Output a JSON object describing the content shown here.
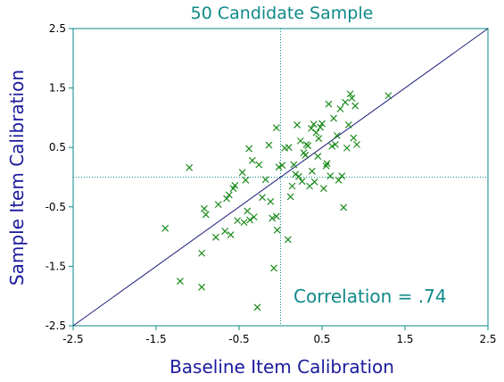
{
  "chart_data": {
    "type": "scatter",
    "title": "50 Candidate Sample",
    "xlabel": "Baseline Item Calibration",
    "ylabel": "Sample Item Calibration",
    "xlim": [
      -2.5,
      2.5
    ],
    "ylim": [
      -2.5,
      2.5
    ],
    "x_ticks": [
      "-2.5",
      "-1.5",
      "-0.5",
      "0.5",
      "1.5",
      "2.5"
    ],
    "y_ticks": [
      "2.5",
      "1.5",
      "0.5",
      "-0.5",
      "-1.5",
      "-2.5"
    ],
    "annotation": "Correlation = .74",
    "colors": {
      "frame": "#0e8a88",
      "marker": "#1a8a1a",
      "identity_line": "#1a1a7a",
      "label": "#1a1a9c"
    },
    "reference_lines": {
      "x": 0,
      "y": 0,
      "style": "dotted"
    },
    "identity_line": true,
    "marker": "x",
    "points": [
      [
        -1.39,
        -0.86
      ],
      [
        -1.21,
        -1.75
      ],
      [
        -1.1,
        0.16
      ],
      [
        -0.95,
        -1.85
      ],
      [
        -0.95,
        -1.28
      ],
      [
        -0.92,
        -0.53
      ],
      [
        -0.9,
        -0.63
      ],
      [
        -0.78,
        -1.01
      ],
      [
        -0.75,
        -0.46
      ],
      [
        -0.67,
        -0.91
      ],
      [
        -0.65,
        -0.36
      ],
      [
        -0.62,
        -0.3
      ],
      [
        -0.6,
        -0.97
      ],
      [
        -0.57,
        -0.19
      ],
      [
        -0.55,
        -0.14
      ],
      [
        -0.52,
        -0.73
      ],
      [
        -0.46,
        0.08
      ],
      [
        -0.44,
        -0.76
      ],
      [
        -0.42,
        -0.05
      ],
      [
        -0.4,
        -0.57
      ],
      [
        -0.38,
        0.48
      ],
      [
        -0.37,
        -0.72
      ],
      [
        -0.34,
        0.28
      ],
      [
        -0.32,
        -0.67
      ],
      [
        -0.28,
        -2.19
      ],
      [
        -0.26,
        0.21
      ],
      [
        -0.22,
        -0.34
      ],
      [
        -0.18,
        -0.04
      ],
      [
        -0.14,
        0.54
      ],
      [
        -0.12,
        -0.41
      ],
      [
        -0.1,
        -0.69
      ],
      [
        -0.08,
        -1.53
      ],
      [
        -0.05,
        0.83
      ],
      [
        -0.05,
        -0.66
      ],
      [
        -0.04,
        -0.89
      ],
      [
        -0.02,
        0.17
      ],
      [
        0.02,
        0.2
      ],
      [
        0.05,
        0.49
      ],
      [
        0.09,
        -1.05
      ],
      [
        0.1,
        0.5
      ],
      [
        0.12,
        -0.33
      ],
      [
        0.14,
        -0.15
      ],
      [
        0.16,
        0.21
      ],
      [
        0.18,
        0.05
      ],
      [
        0.2,
        0.88
      ],
      [
        0.22,
        0.01
      ],
      [
        0.24,
        0.61
      ],
      [
        0.26,
        -0.07
      ],
      [
        0.28,
        0.41
      ],
      [
        0.3,
        0.37
      ],
      [
        0.31,
        0.55
      ],
      [
        0.33,
        0.53
      ],
      [
        0.35,
        -0.15
      ],
      [
        0.37,
        0.82
      ],
      [
        0.38,
        0.1
      ],
      [
        0.4,
        0.89
      ],
      [
        0.41,
        -0.08
      ],
      [
        0.43,
        0.75
      ],
      [
        0.45,
        0.35
      ],
      [
        0.46,
        0.65
      ],
      [
        0.48,
        0.84
      ],
      [
        0.5,
        0.9
      ],
      [
        0.52,
        -0.19
      ],
      [
        0.55,
        0.19
      ],
      [
        0.56,
        0.23
      ],
      [
        0.58,
        1.23
      ],
      [
        0.6,
        0.02
      ],
      [
        0.62,
        0.52
      ],
      [
        0.64,
        0.99
      ],
      [
        0.66,
        0.55
      ],
      [
        0.68,
        0.7
      ],
      [
        0.7,
        -0.05
      ],
      [
        0.72,
        1.15
      ],
      [
        0.74,
        0.02
      ],
      [
        0.76,
        -0.51
      ],
      [
        0.78,
        1.26
      ],
      [
        0.8,
        0.49
      ],
      [
        0.82,
        0.88
      ],
      [
        0.84,
        1.4
      ],
      [
        0.86,
        1.33
      ],
      [
        0.88,
        0.66
      ],
      [
        0.9,
        1.2
      ],
      [
        0.92,
        0.55
      ],
      [
        1.3,
        1.37
      ]
    ]
  }
}
